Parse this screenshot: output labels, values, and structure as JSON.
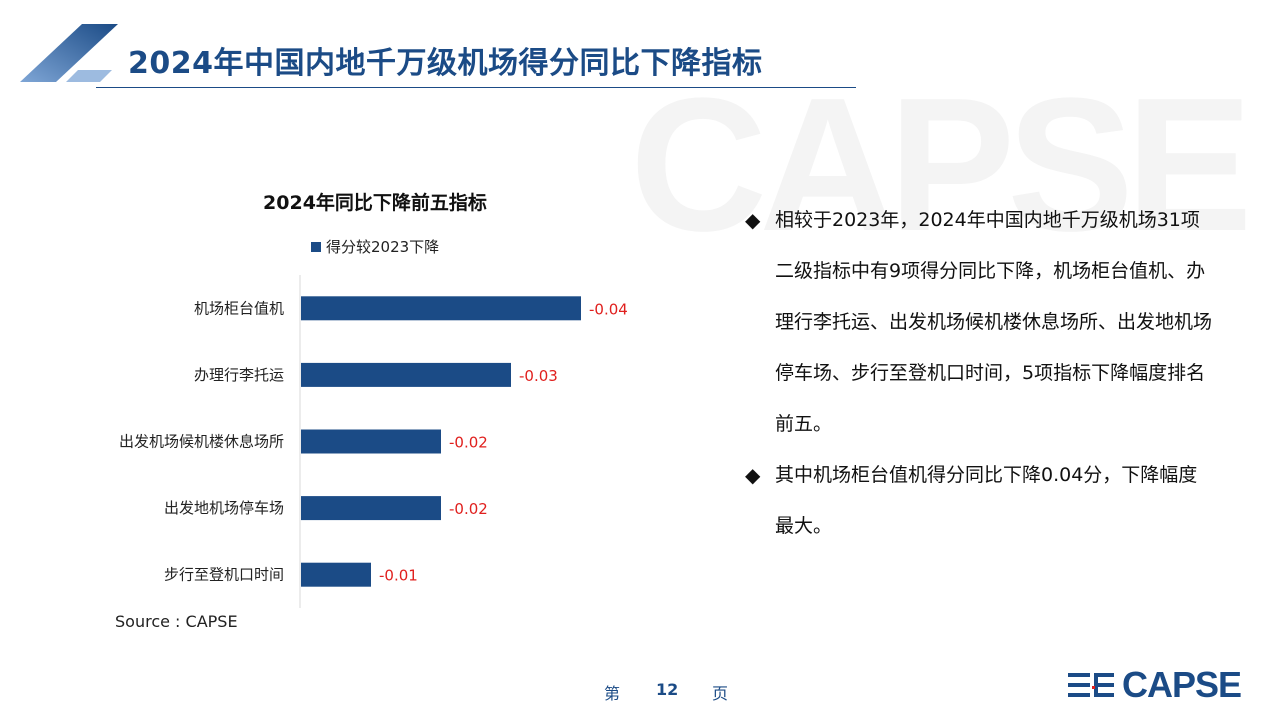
{
  "header": {
    "title": "2024年中国内地千万级机场得分同比下降指标"
  },
  "watermark": {
    "text": "CAPSE"
  },
  "chart_data": {
    "type": "bar",
    "orientation": "horizontal",
    "title": "2024年同比下降前五指标",
    "categories": [
      "机场柜台值机",
      "办理行李托运",
      "出发机场候机楼休息场所",
      "出发地机场停车场",
      "步行至登机口时间"
    ],
    "series": [
      {
        "name": "得分较2023下降",
        "values": [
          -0.04,
          -0.03,
          -0.02,
          -0.02,
          -0.01
        ]
      }
    ],
    "data_labels": [
      "-0.04",
      "-0.03",
      "-0.02",
      "-0.02",
      "-0.01"
    ],
    "xlim": [
      0,
      -0.04
    ],
    "xlabel": "",
    "ylabel": "",
    "grid": false,
    "legend": "top",
    "colors": {
      "bar": "#1b4b86",
      "label": "#e0201e",
      "axis": "#d9d9d9"
    }
  },
  "source": "Source : CAPSE",
  "bullets": [
    "相较于2023年，2024年中国内地千万级机场31项二级指标中有9项得分同比下降，机场柜台值机、办理行李托运、出发机场候机楼休息场所、出发地机场停车场、步行至登机口时间，5项指标下降幅度排名前五。",
    "其中机场柜台值机得分同比下降0.04分，下降幅度最大。"
  ],
  "bullet_icon": "diamond-icon",
  "footer": {
    "page_prefix": "第",
    "page_number": "12",
    "page_suffix": "页"
  },
  "logo": {
    "text": "CAPSE",
    "icon": "capse-lines-icon"
  },
  "colors": {
    "brand": "#1b4b86"
  }
}
